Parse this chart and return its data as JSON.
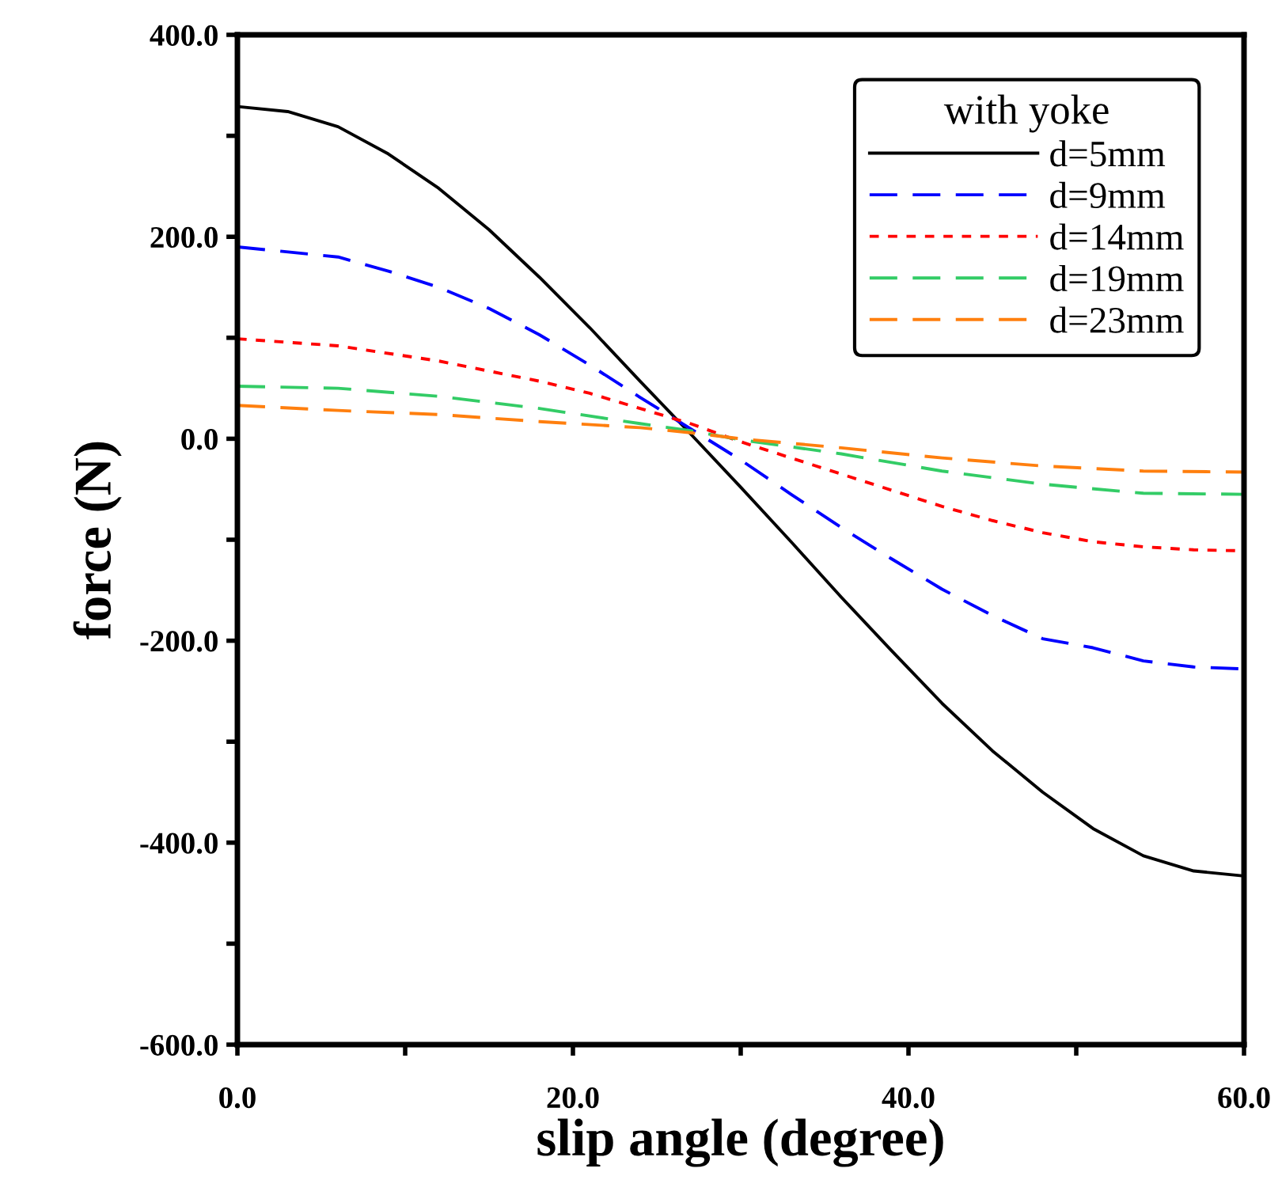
{
  "chart_data": {
    "type": "line",
    "xlabel": "slip angle (degree)",
    "ylabel": "force (N)",
    "legend_title": "with yoke",
    "legend": "top right",
    "grid": false,
    "marker": "none",
    "xlim": [
      0,
      60
    ],
    "ylim": [
      -600,
      400
    ],
    "xticks": [
      {
        "value": 0,
        "label": "0.0"
      },
      {
        "value": 10,
        "label": null
      },
      {
        "value": 20,
        "label": "20.0"
      },
      {
        "value": 30,
        "label": null
      },
      {
        "value": 40,
        "label": "40.0"
      },
      {
        "value": 50,
        "label": null
      },
      {
        "value": 60,
        "label": "60.0"
      }
    ],
    "yticks": [
      {
        "value": -600,
        "label": "-600.0"
      },
      {
        "value": -500,
        "label": null
      },
      {
        "value": -400,
        "label": "-400.0"
      },
      {
        "value": -300,
        "label": null
      },
      {
        "value": -200,
        "label": "-200.0"
      },
      {
        "value": -100,
        "label": null
      },
      {
        "value": 0,
        "label": "0.0"
      },
      {
        "value": 100,
        "label": null
      },
      {
        "value": 200,
        "label": "200.0"
      },
      {
        "value": 300,
        "label": null
      },
      {
        "value": 400,
        "label": "400.0"
      }
    ],
    "series": [
      {
        "name": "d=5mm",
        "color": "#000000",
        "line_style": "solid",
        "x": [
          0,
          3,
          6,
          9,
          12,
          15,
          18,
          21,
          24,
          27,
          30,
          33,
          36,
          39,
          42,
          45,
          48,
          51,
          54,
          57,
          60
        ],
        "values": [
          329,
          324,
          309,
          282,
          248,
          207,
          160,
          110,
          57,
          5,
          -48,
          -102,
          -157,
          -210,
          -262,
          -309,
          -350,
          -386,
          -413,
          -428,
          -433
        ]
      },
      {
        "name": "d=9mm",
        "color": "#0000ff",
        "line_style": "dashed",
        "x": [
          0,
          6,
          9,
          12,
          15,
          18,
          21,
          24,
          27,
          30,
          33,
          36,
          39,
          42,
          45,
          48,
          51,
          54,
          57,
          60
        ],
        "values": [
          190,
          180,
          166,
          150,
          129,
          103,
          73,
          41,
          10,
          -21,
          -55,
          -88,
          -119,
          -149,
          -175,
          -198,
          -207,
          -220,
          -226,
          -228
        ]
      },
      {
        "name": "d=14mm",
        "color": "#ff0000",
        "line_style": "dotted",
        "x": [
          0,
          6,
          12,
          18,
          21,
          24,
          27,
          30,
          33,
          36,
          39,
          42,
          45,
          48,
          51,
          54,
          57,
          60
        ],
        "values": [
          99,
          92,
          77,
          57,
          45,
          30,
          15,
          -3,
          -19,
          -35,
          -51,
          -67,
          -81,
          -93,
          -102,
          -107,
          -110,
          -111
        ]
      },
      {
        "name": "d=19mm",
        "color": "#33cc66",
        "line_style": "dashed",
        "x": [
          0,
          6,
          12,
          18,
          24,
          27,
          30,
          36,
          42,
          48,
          54,
          60
        ],
        "values": [
          52,
          50,
          42,
          30,
          15,
          8,
          -1,
          -15,
          -32,
          -45,
          -54,
          -55
        ]
      },
      {
        "name": "d=23mm",
        "color": "#ff7f0e",
        "line_style": "dashed",
        "x": [
          0,
          6,
          12,
          18,
          24,
          27,
          30,
          36,
          42,
          48,
          54,
          60
        ],
        "values": [
          33,
          28,
          24,
          17,
          11,
          6,
          0,
          -9,
          -19,
          -27,
          -32,
          -33
        ]
      }
    ]
  }
}
